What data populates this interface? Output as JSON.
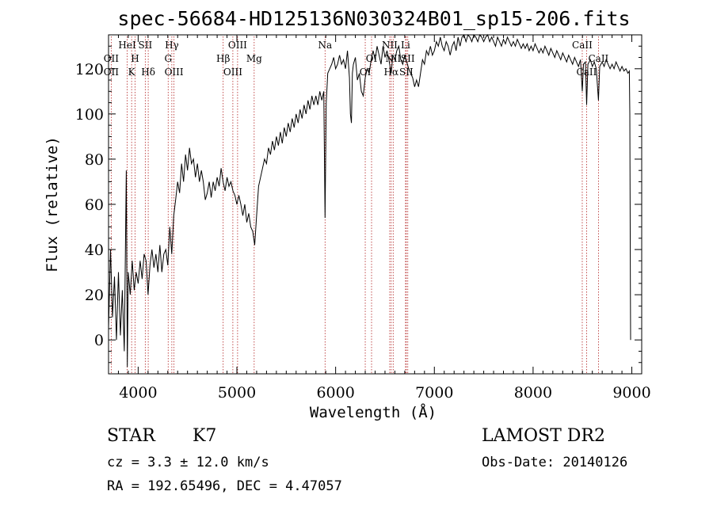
{
  "chart_data": {
    "type": "line",
    "title": "spec-56684-HD125136N030324B01_sp15-206.fits",
    "xlabel": "Wavelength (Å)",
    "ylabel": "Flux (relative)",
    "xlim": [
      3700,
      9100
    ],
    "ylim": [
      -15,
      135
    ],
    "x_ticks": [
      4000,
      5000,
      6000,
      7000,
      8000,
      9000
    ],
    "y_ticks": [
      0,
      20,
      40,
      60,
      80,
      100,
      120
    ],
    "grid": false,
    "series": [
      {
        "points": [
          [
            3700,
            5
          ],
          [
            3720,
            40
          ],
          [
            3740,
            10
          ],
          [
            3760,
            28
          ],
          [
            3780,
            0
          ],
          [
            3800,
            30
          ],
          [
            3820,
            2
          ],
          [
            3840,
            22
          ],
          [
            3860,
            -5
          ],
          [
            3880,
            75
          ],
          [
            3890,
            -12
          ],
          [
            3900,
            30
          ],
          [
            3920,
            20
          ],
          [
            3940,
            35
          ],
          [
            3960,
            22
          ],
          [
            3980,
            30
          ],
          [
            4000,
            25
          ],
          [
            4020,
            35
          ],
          [
            4040,
            27
          ],
          [
            4060,
            38
          ],
          [
            4080,
            35
          ],
          [
            4100,
            20
          ],
          [
            4120,
            33
          ],
          [
            4140,
            40
          ],
          [
            4160,
            32
          ],
          [
            4180,
            38
          ],
          [
            4200,
            30
          ],
          [
            4220,
            42
          ],
          [
            4240,
            30
          ],
          [
            4260,
            38
          ],
          [
            4280,
            40
          ],
          [
            4300,
            33
          ],
          [
            4320,
            50
          ],
          [
            4340,
            38
          ],
          [
            4360,
            55
          ],
          [
            4380,
            62
          ],
          [
            4400,
            70
          ],
          [
            4420,
            65
          ],
          [
            4440,
            78
          ],
          [
            4460,
            70
          ],
          [
            4480,
            82
          ],
          [
            4500,
            75
          ],
          [
            4520,
            85
          ],
          [
            4540,
            78
          ],
          [
            4560,
            80
          ],
          [
            4580,
            72
          ],
          [
            4600,
            78
          ],
          [
            4620,
            70
          ],
          [
            4640,
            75
          ],
          [
            4660,
            70
          ],
          [
            4680,
            62
          ],
          [
            4700,
            65
          ],
          [
            4720,
            70
          ],
          [
            4740,
            63
          ],
          [
            4760,
            70
          ],
          [
            4780,
            66
          ],
          [
            4800,
            72
          ],
          [
            4820,
            68
          ],
          [
            4840,
            76
          ],
          [
            4860,
            70
          ],
          [
            4880,
            66
          ],
          [
            4900,
            72
          ],
          [
            4920,
            68
          ],
          [
            4940,
            70
          ],
          [
            4960,
            66
          ],
          [
            4980,
            64
          ],
          [
            5000,
            60
          ],
          [
            5020,
            64
          ],
          [
            5040,
            60
          ],
          [
            5060,
            55
          ],
          [
            5080,
            60
          ],
          [
            5100,
            52
          ],
          [
            5120,
            56
          ],
          [
            5140,
            50
          ],
          [
            5160,
            48
          ],
          [
            5180,
            42
          ],
          [
            5200,
            55
          ],
          [
            5220,
            68
          ],
          [
            5240,
            72
          ],
          [
            5260,
            76
          ],
          [
            5280,
            80
          ],
          [
            5300,
            78
          ],
          [
            5320,
            85
          ],
          [
            5340,
            82
          ],
          [
            5360,
            88
          ],
          [
            5380,
            84
          ],
          [
            5400,
            90
          ],
          [
            5420,
            86
          ],
          [
            5440,
            92
          ],
          [
            5460,
            87
          ],
          [
            5480,
            94
          ],
          [
            5500,
            90
          ],
          [
            5520,
            96
          ],
          [
            5540,
            92
          ],
          [
            5560,
            98
          ],
          [
            5580,
            94
          ],
          [
            5600,
            100
          ],
          [
            5620,
            96
          ],
          [
            5640,
            102
          ],
          [
            5660,
            98
          ],
          [
            5680,
            104
          ],
          [
            5700,
            100
          ],
          [
            5720,
            106
          ],
          [
            5740,
            102
          ],
          [
            5760,
            108
          ],
          [
            5780,
            104
          ],
          [
            5800,
            108
          ],
          [
            5820,
            104
          ],
          [
            5840,
            110
          ],
          [
            5860,
            106
          ],
          [
            5880,
            110
          ],
          [
            5893,
            54
          ],
          [
            5905,
            105
          ],
          [
            5920,
            118
          ],
          [
            5940,
            120
          ],
          [
            5960,
            122
          ],
          [
            5980,
            125
          ],
          [
            6000,
            120
          ],
          [
            6020,
            122
          ],
          [
            6040,
            126
          ],
          [
            6060,
            122
          ],
          [
            6080,
            124
          ],
          [
            6100,
            120
          ],
          [
            6120,
            128
          ],
          [
            6140,
            116
          ],
          [
            6150,
            100
          ],
          [
            6160,
            96
          ],
          [
            6170,
            118
          ],
          [
            6180,
            122
          ],
          [
            6200,
            125
          ],
          [
            6220,
            115
          ],
          [
            6240,
            118
          ],
          [
            6260,
            110
          ],
          [
            6280,
            108
          ],
          [
            6300,
            116
          ],
          [
            6320,
            120
          ],
          [
            6340,
            118
          ],
          [
            6360,
            124
          ],
          [
            6380,
            128
          ],
          [
            6400,
            124
          ],
          [
            6420,
            130
          ],
          [
            6440,
            126
          ],
          [
            6460,
            122
          ],
          [
            6480,
            130
          ],
          [
            6500,
            125
          ],
          [
            6520,
            128
          ],
          [
            6540,
            124
          ],
          [
            6563,
            118
          ],
          [
            6580,
            126
          ],
          [
            6600,
            124
          ],
          [
            6620,
            128
          ],
          [
            6640,
            130
          ],
          [
            6660,
            124
          ],
          [
            6680,
            122
          ],
          [
            6700,
            126
          ],
          [
            6720,
            123
          ],
          [
            6740,
            120
          ],
          [
            6760,
            118
          ],
          [
            6780,
            116
          ],
          [
            6800,
            112
          ],
          [
            6820,
            115
          ],
          [
            6840,
            112
          ],
          [
            6860,
            118
          ],
          [
            6880,
            124
          ],
          [
            6900,
            122
          ],
          [
            6920,
            128
          ],
          [
            6940,
            126
          ],
          [
            6960,
            130
          ],
          [
            6980,
            126
          ],
          [
            7000,
            128
          ],
          [
            7020,
            132
          ],
          [
            7040,
            130
          ],
          [
            7060,
            134
          ],
          [
            7080,
            130
          ],
          [
            7100,
            128
          ],
          [
            7120,
            132
          ],
          [
            7140,
            130
          ],
          [
            7160,
            126
          ],
          [
            7180,
            130
          ],
          [
            7200,
            132
          ],
          [
            7220,
            128
          ],
          [
            7240,
            134
          ],
          [
            7260,
            130
          ],
          [
            7280,
            134
          ],
          [
            7300,
            136
          ],
          [
            7320,
            132
          ],
          [
            7340,
            136
          ],
          [
            7360,
            134
          ],
          [
            7380,
            132
          ],
          [
            7400,
            136
          ],
          [
            7420,
            134
          ],
          [
            7440,
            132
          ],
          [
            7460,
            136
          ],
          [
            7480,
            134
          ],
          [
            7500,
            132
          ],
          [
            7520,
            134
          ],
          [
            7540,
            136
          ],
          [
            7560,
            132
          ],
          [
            7580,
            134
          ],
          [
            7600,
            132
          ],
          [
            7620,
            130
          ],
          [
            7640,
            134
          ],
          [
            7660,
            132
          ],
          [
            7680,
            130
          ],
          [
            7700,
            133
          ],
          [
            7720,
            131
          ],
          [
            7740,
            134
          ],
          [
            7760,
            132
          ],
          [
            7780,
            130
          ],
          [
            7800,
            132
          ],
          [
            7820,
            130
          ],
          [
            7840,
            133
          ],
          [
            7860,
            131
          ],
          [
            7880,
            129
          ],
          [
            7900,
            131
          ],
          [
            7920,
            129
          ],
          [
            7940,
            131
          ],
          [
            7960,
            128
          ],
          [
            7980,
            130
          ],
          [
            8000,
            128
          ],
          [
            8020,
            131
          ],
          [
            8040,
            129
          ],
          [
            8060,
            127
          ],
          [
            8080,
            129
          ],
          [
            8100,
            127
          ],
          [
            8120,
            130
          ],
          [
            8140,
            128
          ],
          [
            8160,
            126
          ],
          [
            8180,
            129
          ],
          [
            8200,
            127
          ],
          [
            8220,
            125
          ],
          [
            8240,
            128
          ],
          [
            8260,
            126
          ],
          [
            8280,
            124
          ],
          [
            8300,
            127
          ],
          [
            8320,
            125
          ],
          [
            8340,
            123
          ],
          [
            8360,
            126
          ],
          [
            8380,
            124
          ],
          [
            8400,
            122
          ],
          [
            8420,
            125
          ],
          [
            8440,
            123
          ],
          [
            8460,
            121
          ],
          [
            8480,
            124
          ],
          [
            8498,
            110
          ],
          [
            8510,
            122
          ],
          [
            8530,
            123
          ],
          [
            8542,
            104
          ],
          [
            8555,
            122
          ],
          [
            8580,
            124
          ],
          [
            8600,
            121
          ],
          [
            8620,
            123
          ],
          [
            8640,
            120
          ],
          [
            8662,
            106
          ],
          [
            8675,
            121
          ],
          [
            8700,
            123
          ],
          [
            8720,
            121
          ],
          [
            8740,
            124
          ],
          [
            8760,
            122
          ],
          [
            8780,
            120
          ],
          [
            8800,
            122
          ],
          [
            8820,
            120
          ],
          [
            8840,
            123
          ],
          [
            8860,
            121
          ],
          [
            8880,
            119
          ],
          [
            8900,
            121
          ],
          [
            8920,
            119
          ],
          [
            8940,
            120
          ],
          [
            8960,
            118
          ],
          [
            8975,
            119
          ],
          [
            8980,
            100
          ],
          [
            8985,
            25
          ],
          [
            8988,
            0
          ]
        ]
      }
    ],
    "line_markers": [
      {
        "label": "HeI",
        "x": 3889,
        "row": 1
      },
      {
        "label": "OII",
        "x": 3727,
        "row": 2
      },
      {
        "label": "OII",
        "x": 3727,
        "row": 3
      },
      {
        "label": "H",
        "x": 3969,
        "row": 2
      },
      {
        "label": "K",
        "x": 3934,
        "row": 3
      },
      {
        "label": "SII",
        "x": 4072,
        "row": 1
      },
      {
        "label": "Hδ",
        "x": 4102,
        "row": 3
      },
      {
        "label": "Hγ",
        "x": 4341,
        "row": 1
      },
      {
        "label": "G",
        "x": 4304,
        "row": 2
      },
      {
        "label": "OIII",
        "x": 4363,
        "row": 3
      },
      {
        "label": "OIII",
        "x": 5007,
        "row": 1
      },
      {
        "label": "Hβ",
        "x": 4861,
        "row": 2
      },
      {
        "label": "OIII",
        "x": 4959,
        "row": 3
      },
      {
        "label": "Mg",
        "x": 5175,
        "row": 2
      },
      {
        "label": "Na",
        "x": 5893,
        "row": 1
      },
      {
        "label": "OI",
        "x": 6300,
        "row": 3
      },
      {
        "label": "OI",
        "x": 6364,
        "row": 2
      },
      {
        "label": "NII",
        "x": 6548,
        "row": 1
      },
      {
        "label": "NII",
        "x": 6583,
        "row": 2
      },
      {
        "label": "Hα",
        "x": 6563,
        "row": 3
      },
      {
        "label": "Li",
        "x": 6708,
        "row": 1
      },
      {
        "label": "SII",
        "x": 6731,
        "row": 2
      },
      {
        "label": "SII",
        "x": 6716,
        "row": 3
      },
      {
        "label": "CaII",
        "x": 8498,
        "row": 1
      },
      {
        "label": "CaII",
        "x": 8542,
        "row": 3
      },
      {
        "label": "CaII",
        "x": 8662,
        "row": 2
      }
    ]
  },
  "info": {
    "object_class": "STAR",
    "subclass": "K7",
    "survey": "LAMOST DR2",
    "cz_line": "cz = 3.3 ± 12.0 km/s",
    "obs_date_line": "Obs-Date: 20140126",
    "radec_line": "RA = 192.65496, DEC =   4.47057"
  }
}
